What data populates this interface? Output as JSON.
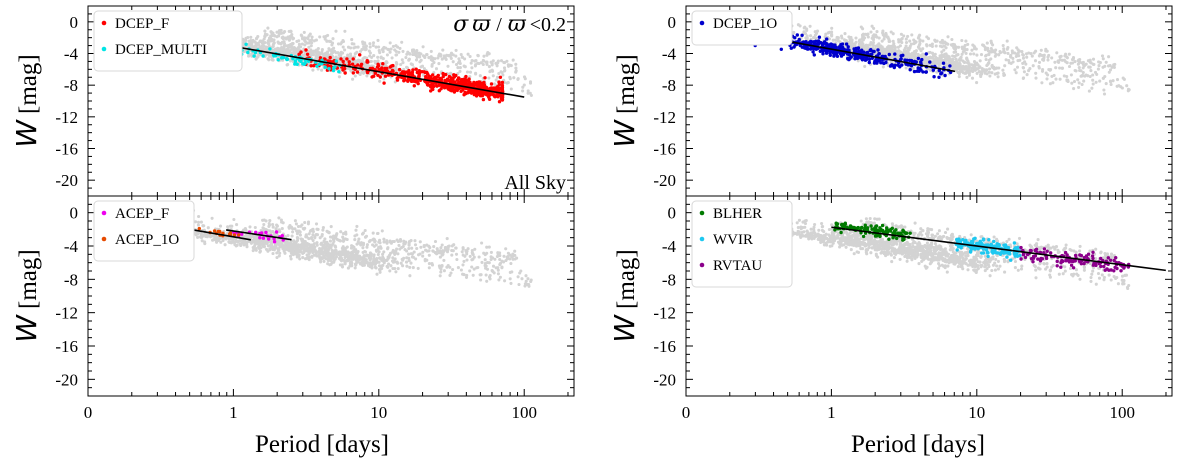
{
  "figure": {
    "x_axis_title": "Period [days]",
    "y_axis_title_symbol": "W",
    "y_axis_title_unit": "[mag]"
  },
  "chart_data": [
    {
      "type": "scatter",
      "panel": "top-left",
      "x_scale": "log",
      "xlim": [
        0.1,
        220
      ],
      "ylim": [
        2,
        -22
      ],
      "x_ticks": [
        {
          "value": 0.1,
          "label": "0"
        },
        {
          "value": 1,
          "label": "1"
        },
        {
          "value": 10,
          "label": "10"
        },
        {
          "value": 100,
          "label": "100"
        }
      ],
      "y_ticks": [
        0,
        -4,
        -8,
        -12,
        -16,
        -20
      ],
      "y_tick_labels": [
        "0",
        "-4",
        "-8",
        "-12",
        "-16",
        "-20"
      ],
      "show_x_labels": false,
      "show_x_title": false,
      "legend": {
        "position": "top-left",
        "entries": [
          {
            "name": "DCEP_F",
            "color": "#ff0000"
          },
          {
            "name": "DCEP_MULTI",
            "color": "#00e5e5"
          }
        ]
      },
      "annotations": [
        {
          "text": "All Sky",
          "position": "bottom-right"
        }
      ],
      "header_annotation": {
        "sigma": "σ",
        "pi1": "ϖ",
        "slash": "/",
        "pi2": "ϖ",
        "limit": "<0.2"
      },
      "series": [
        {
          "name": "background",
          "color": "#d3d3d3",
          "seed": 11,
          "n": 1500,
          "kind": "background"
        },
        {
          "name": "DCEP_F",
          "color": "#ff0000",
          "seed": 21,
          "n": 620,
          "logp": [
            0.45,
            1.85
          ],
          "a": -2.9,
          "b": -3.3,
          "sd": 0.5,
          "peak": 0.8
        },
        {
          "name": "DCEP_MULTI",
          "color": "#00e5e5",
          "seed": 31,
          "n": 140,
          "logp": [
            -0.65,
            0.75
          ],
          "a": -3.3,
          "b": -3.4,
          "sd": 0.3
        }
      ],
      "fit_lines": [
        {
          "logp": [
            0.0,
            2.0
          ],
          "a": -3.1,
          "b": -3.2
        }
      ]
    },
    {
      "type": "scatter",
      "panel": "top-right",
      "x_scale": "log",
      "xlim": [
        0.1,
        220
      ],
      "ylim": [
        2,
        -22
      ],
      "x_ticks": [
        {
          "value": 0.1,
          "label": "0"
        },
        {
          "value": 1,
          "label": "1"
        },
        {
          "value": 10,
          "label": "10"
        },
        {
          "value": 100,
          "label": "100"
        }
      ],
      "y_ticks": [
        0,
        -4,
        -8,
        -12,
        -16,
        -20
      ],
      "y_tick_labels": [
        "0",
        "-4",
        "-8",
        "-12",
        "-16",
        "-20"
      ],
      "show_x_labels": false,
      "show_x_title": false,
      "legend": {
        "position": "top-left",
        "entries": [
          {
            "name": "DCEP_1O",
            "color": "#0000cd"
          }
        ]
      },
      "series": [
        {
          "name": "background",
          "color": "#d3d3d3",
          "seed": 12,
          "n": 1500,
          "kind": "background"
        },
        {
          "name": "DCEP_1O",
          "color": "#0000cd",
          "seed": 41,
          "n": 420,
          "logp": [
            -0.68,
            0.82
          ],
          "a": -3.45,
          "b": -3.35,
          "sd": 0.42,
          "peak": 0.5
        }
      ],
      "fit_lines": [
        {
          "logp": [
            -0.68,
            0.85
          ],
          "a": -3.45,
          "b": -3.3
        }
      ]
    },
    {
      "type": "scatter",
      "panel": "bottom-left",
      "x_scale": "log",
      "xlim": [
        0.1,
        220
      ],
      "ylim": [
        2,
        -22
      ],
      "x_ticks": [
        {
          "value": 0.1,
          "label": "0"
        },
        {
          "value": 1,
          "label": "1"
        },
        {
          "value": 10,
          "label": "10"
        },
        {
          "value": 100,
          "label": "100"
        }
      ],
      "y_ticks": [
        0,
        -4,
        -8,
        -12,
        -16,
        -20
      ],
      "y_tick_labels": [
        "0",
        "-4",
        "-8",
        "-12",
        "-16",
        "-20"
      ],
      "show_x_labels": true,
      "show_x_title": true,
      "legend": {
        "position": "top-left",
        "entries": [
          {
            "name": "ACEP_F",
            "color": "#ee00ee"
          },
          {
            "name": "ACEP_1O",
            "color": "#e64a00"
          }
        ]
      },
      "series": [
        {
          "name": "background",
          "color": "#d3d3d3",
          "seed": 13,
          "n": 1500,
          "kind": "background"
        },
        {
          "name": "ACEP_F",
          "color": "#ee00ee",
          "seed": 51,
          "n": 24,
          "logp": [
            -0.02,
            0.35
          ],
          "a": -2.3,
          "b": -2.5,
          "sd": 0.25
        },
        {
          "name": "ACEP_1O",
          "color": "#e64a00",
          "seed": 61,
          "n": 18,
          "logp": [
            -0.35,
            0.1
          ],
          "a": -2.7,
          "b": -2.9,
          "sd": 0.25
        }
      ],
      "fit_lines": [
        {
          "logp": [
            -0.4,
            0.12
          ],
          "a": -2.9,
          "b": -3.0
        },
        {
          "logp": [
            -0.05,
            0.4
          ],
          "a": -2.2,
          "b": -2.6
        }
      ]
    },
    {
      "type": "scatter",
      "panel": "bottom-right",
      "x_scale": "log",
      "xlim": [
        0.1,
        220
      ],
      "ylim": [
        2,
        -22
      ],
      "x_ticks": [
        {
          "value": 0.1,
          "label": "0"
        },
        {
          "value": 1,
          "label": "1"
        },
        {
          "value": 10,
          "label": "10"
        },
        {
          "value": 100,
          "label": "100"
        }
      ],
      "y_ticks": [
        0,
        -4,
        -8,
        -12,
        -16,
        -20
      ],
      "y_tick_labels": [
        "0",
        "-4",
        "-8",
        "-12",
        "-16",
        "-20"
      ],
      "show_x_labels": true,
      "show_x_title": true,
      "legend": {
        "position": "top-left",
        "entries": [
          {
            "name": "BLHER",
            "color": "#007a00"
          },
          {
            "name": "WVIR",
            "color": "#1ec8f0"
          },
          {
            "name": "RVTAU",
            "color": "#8b008b"
          }
        ]
      },
      "series": [
        {
          "name": "background",
          "color": "#d3d3d3",
          "seed": 14,
          "n": 1500,
          "kind": "background"
        },
        {
          "name": "BLHER",
          "color": "#007a00",
          "seed": 71,
          "n": 130,
          "logp": [
            0.02,
            0.55
          ],
          "a": -1.5,
          "b": -2.3,
          "sd": 0.35
        },
        {
          "name": "WVIR",
          "color": "#1ec8f0",
          "seed": 81,
          "n": 160,
          "logp": [
            0.85,
            1.3
          ],
          "a": -1.7,
          "b": -2.3,
          "sd": 0.4
        },
        {
          "name": "RVTAU",
          "color": "#8b008b",
          "seed": 91,
          "n": 130,
          "logp": [
            1.3,
            2.05
          ],
          "a": -1.8,
          "b": -2.3,
          "sd": 0.45
        }
      ],
      "fit_lines": [
        {
          "logp": [
            0.0,
            2.3
          ],
          "a": -1.75,
          "b": -2.25
        }
      ]
    }
  ]
}
